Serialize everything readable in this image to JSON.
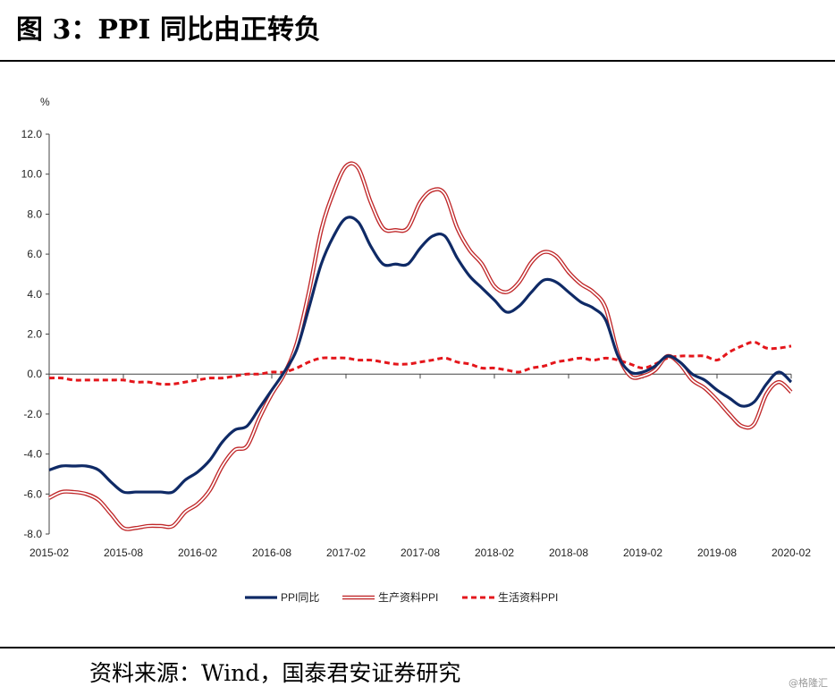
{
  "header": {
    "title": "图 3：PPI 同比由正转负"
  },
  "footer": {
    "source": "资料来源：Wind，国泰君安证券研究",
    "watermark": "@格隆汇"
  },
  "chart_data": {
    "type": "line",
    "ylabel": "%",
    "ylim": [
      -8.0,
      12.0
    ],
    "yticks": [
      "-8.0",
      "-6.0",
      "-4.0",
      "-2.0",
      "0.0",
      "2.0",
      "4.0",
      "6.0",
      "8.0",
      "10.0",
      "12.0"
    ],
    "xticks": [
      "2015-02",
      "2015-08",
      "2016-02",
      "2016-08",
      "2017-02",
      "2017-08",
      "2018-02",
      "2018-08",
      "2019-02",
      "2019-08",
      "2020-02"
    ],
    "x": [
      "2015-02",
      "2015-03",
      "2015-04",
      "2015-05",
      "2015-06",
      "2015-07",
      "2015-08",
      "2015-09",
      "2015-10",
      "2015-11",
      "2015-12",
      "2016-01",
      "2016-02",
      "2016-03",
      "2016-04",
      "2016-05",
      "2016-06",
      "2016-07",
      "2016-08",
      "2016-09",
      "2016-10",
      "2016-11",
      "2016-12",
      "2017-01",
      "2017-02",
      "2017-03",
      "2017-04",
      "2017-05",
      "2017-06",
      "2017-07",
      "2017-08",
      "2017-09",
      "2017-10",
      "2017-11",
      "2017-12",
      "2018-01",
      "2018-02",
      "2018-03",
      "2018-04",
      "2018-05",
      "2018-06",
      "2018-07",
      "2018-08",
      "2018-09",
      "2018-10",
      "2018-11",
      "2018-12",
      "2019-01",
      "2019-02",
      "2019-03",
      "2019-04",
      "2019-05",
      "2019-06",
      "2019-07",
      "2019-08",
      "2019-09",
      "2019-10",
      "2019-11",
      "2019-12",
      "2020-01",
      "2020-02"
    ],
    "legend_position": "bottom",
    "grid": false,
    "series": [
      {
        "name": "PPI同比",
        "style": "solid",
        "color": "#0f2a66",
        "values": [
          -4.8,
          -4.6,
          -4.6,
          -4.6,
          -4.8,
          -5.4,
          -5.9,
          -5.9,
          -5.9,
          -5.9,
          -5.9,
          -5.3,
          -4.9,
          -4.3,
          -3.4,
          -2.8,
          -2.6,
          -1.7,
          -0.8,
          0.1,
          1.2,
          3.3,
          5.5,
          6.9,
          7.8,
          7.6,
          6.4,
          5.5,
          5.5,
          5.5,
          6.3,
          6.9,
          6.9,
          5.8,
          4.9,
          4.3,
          3.7,
          3.1,
          3.4,
          4.1,
          4.7,
          4.6,
          4.1,
          3.6,
          3.3,
          2.7,
          0.9,
          0.1,
          0.1,
          0.4,
          0.9,
          0.6,
          0.0,
          -0.3,
          -0.8,
          -1.2,
          -1.6,
          -1.4,
          -0.5,
          0.1,
          -0.4
        ]
      },
      {
        "name": "生产资料PPI",
        "style": "double",
        "color": "#c0282a",
        "values": [
          -6.2,
          -5.9,
          -5.9,
          -6.0,
          -6.3,
          -7.0,
          -7.7,
          -7.7,
          -7.6,
          -7.6,
          -7.6,
          -6.9,
          -6.5,
          -5.8,
          -4.6,
          -3.8,
          -3.6,
          -2.2,
          -1.0,
          0.0,
          1.5,
          4.1,
          7.2,
          9.1,
          10.4,
          10.3,
          8.6,
          7.3,
          7.2,
          7.3,
          8.6,
          9.2,
          9.0,
          7.3,
          6.2,
          5.5,
          4.4,
          4.1,
          4.6,
          5.6,
          6.1,
          5.9,
          5.1,
          4.5,
          4.1,
          3.3,
          1.0,
          -0.1,
          -0.1,
          0.2,
          0.9,
          0.5,
          -0.3,
          -0.7,
          -1.3,
          -2.0,
          -2.6,
          -2.5,
          -1.0,
          -0.4,
          -0.9
        ]
      },
      {
        "name": "生活资料PPI",
        "style": "dashed",
        "color": "#e4161b",
        "values": [
          -0.2,
          -0.2,
          -0.3,
          -0.3,
          -0.3,
          -0.3,
          -0.3,
          -0.4,
          -0.4,
          -0.5,
          -0.5,
          -0.4,
          -0.3,
          -0.2,
          -0.2,
          -0.1,
          0.0,
          0.0,
          0.1,
          0.1,
          0.3,
          0.6,
          0.8,
          0.8,
          0.8,
          0.7,
          0.7,
          0.6,
          0.5,
          0.5,
          0.6,
          0.7,
          0.8,
          0.6,
          0.5,
          0.3,
          0.3,
          0.2,
          0.1,
          0.3,
          0.4,
          0.6,
          0.7,
          0.8,
          0.7,
          0.8,
          0.7,
          0.5,
          0.3,
          0.5,
          0.8,
          0.9,
          0.9,
          0.9,
          0.7,
          1.1,
          1.4,
          1.6,
          1.3,
          1.3,
          1.4
        ]
      }
    ]
  }
}
